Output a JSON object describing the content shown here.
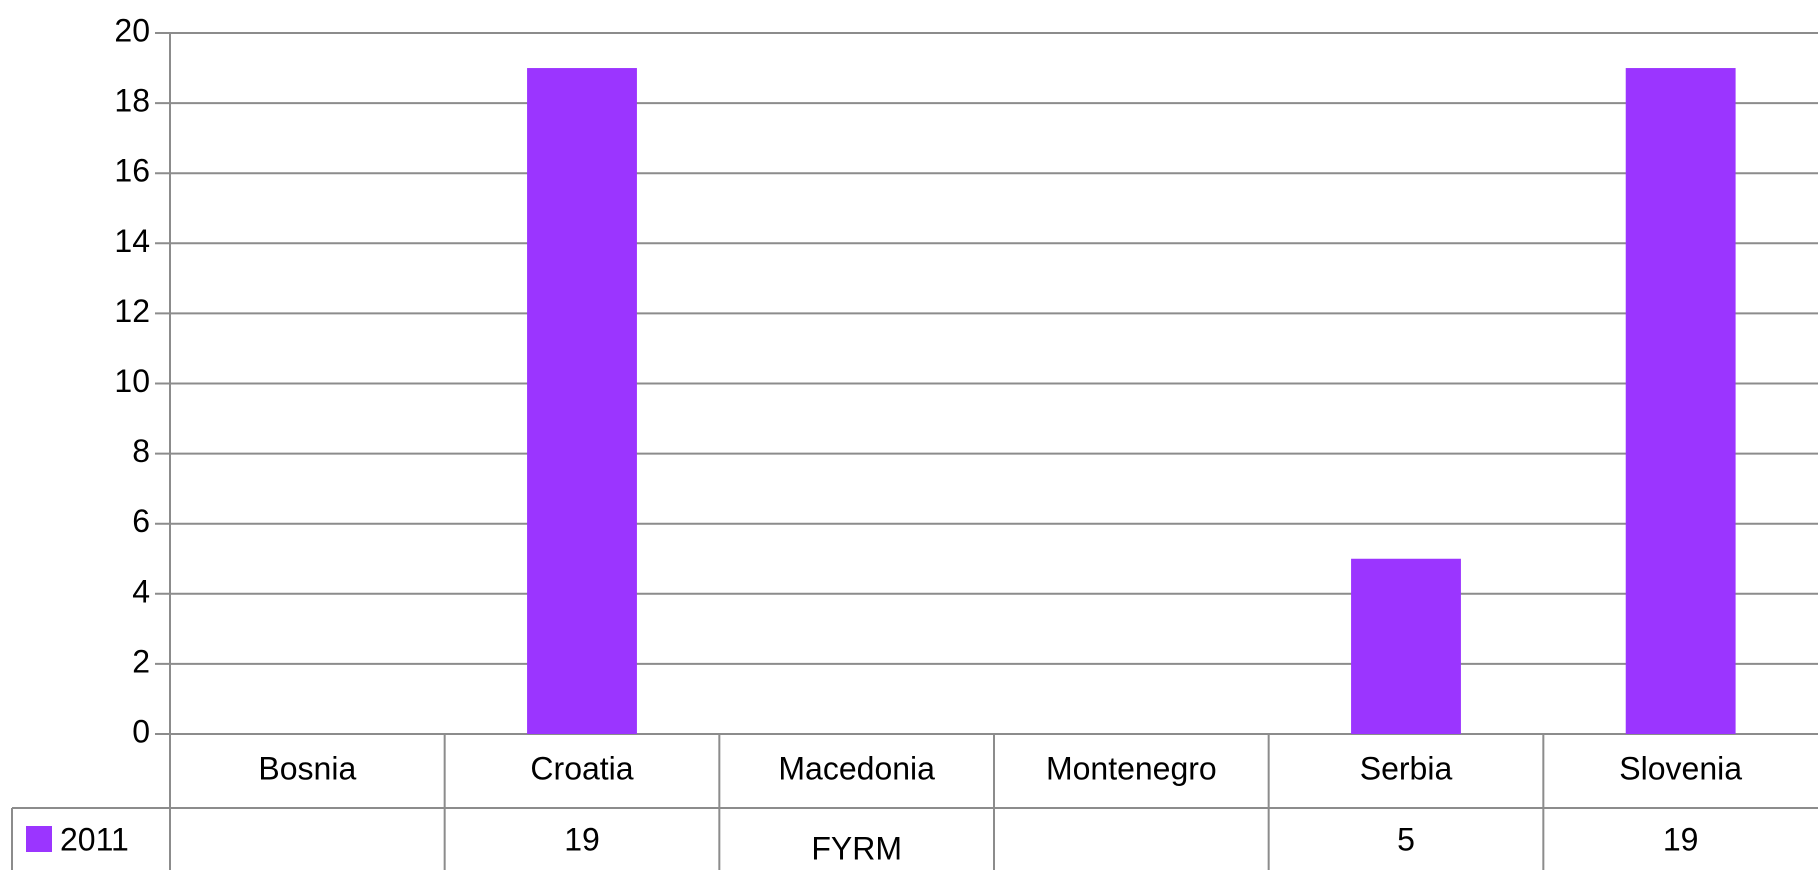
{
  "chart_data": {
    "type": "bar",
    "categories": [
      "Bosnia",
      "Croatia",
      "Macedonia",
      "Montenegro",
      "Serbia",
      "Slovenia"
    ],
    "series": [
      {
        "name": "2011",
        "values": [
          null,
          19,
          null,
          null,
          5,
          19
        ],
        "color": "#9b35ff"
      }
    ],
    "data_table": {
      "row_label": "2011",
      "cells": [
        "",
        "19",
        "FYRM",
        "",
        "5",
        "19"
      ]
    },
    "ylim": [
      0,
      20
    ],
    "yticks": [
      0,
      2,
      4,
      6,
      8,
      10,
      12,
      14,
      16,
      18,
      20
    ],
    "grid": true,
    "legend": "in-table-left"
  }
}
